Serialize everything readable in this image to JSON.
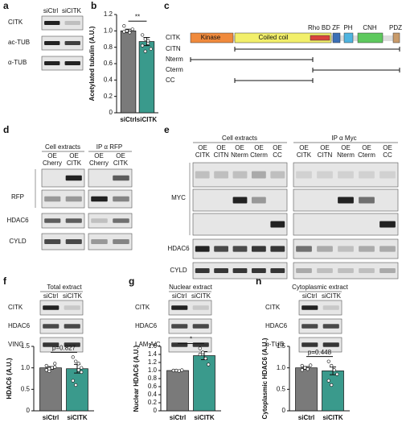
{
  "panel_labels": [
    "a",
    "b",
    "c",
    "d",
    "e",
    "f",
    "g",
    "h"
  ],
  "panel_a": {
    "columns": [
      "siCtrl",
      "siCITK"
    ],
    "rows": [
      "CITK",
      "ac-TUB",
      "α-TUB"
    ]
  },
  "panel_c": {
    "domains": [
      "Kinase",
      "Coiled coil",
      "Rho BD",
      "ZF",
      "PH",
      "CNH",
      "PDZ"
    ],
    "constructs": [
      "CITK",
      "CITN",
      "Nterm",
      "Cterm",
      "CC"
    ]
  },
  "panel_d": {
    "groups": [
      "Cell extracts",
      "IP α RFP"
    ],
    "columns": [
      [
        "OE",
        "Cherry"
      ],
      [
        "OE",
        "CITK"
      ]
    ],
    "rows": [
      "RFP",
      "HDAC6",
      "CYLD"
    ]
  },
  "panel_e": {
    "groups": [
      "Cell extracts",
      "IP α Myc"
    ],
    "columns": [
      [
        "OE",
        "CITK"
      ],
      [
        "OE",
        "CITN"
      ],
      [
        "OE",
        "Nterm"
      ],
      [
        "OE",
        "Cterm"
      ],
      [
        "OE",
        "CC"
      ]
    ],
    "rows": [
      "MYC",
      "HDAC6",
      "CYLD"
    ]
  },
  "panel_f": {
    "title": "Total extract",
    "columns": [
      "siCtrl",
      "siCITK"
    ],
    "rows": [
      "CITK",
      "HDAC6",
      "VINC"
    ]
  },
  "panel_g": {
    "title": "Nuclear extract",
    "columns": [
      "siCtrl",
      "siCITK"
    ],
    "rows": [
      "CITK",
      "HDAC6",
      "LAM A/C"
    ]
  },
  "panel_h": {
    "title": "Cytoplasmic extract",
    "columns": [
      "siCtrl",
      "siCITK"
    ],
    "rows": [
      "CITK",
      "HDAC6",
      "α-TUB"
    ]
  },
  "chart_data": [
    {
      "type": "bar",
      "ylabel": "Acetylated tubulin (A.U.)",
      "categories": [
        "siCtrl",
        "siCITK"
      ],
      "values": [
        1.0,
        0.87
      ],
      "errors": [
        0.02,
        0.05
      ],
      "colors": [
        "#7a7a7a",
        "#3a9a8c"
      ],
      "points": [
        [
          1.06,
          1.0,
          0.98,
          1.02,
          0.99,
          1.0
        ],
        [
          0.95,
          0.9,
          0.85,
          0.78,
          0.82,
          0.75,
          0.88
        ]
      ],
      "ylim": [
        0,
        1.2
      ],
      "yticks": [
        0,
        0.2,
        0.4,
        0.6,
        0.8,
        {
          "value": 1,
          "label": "1.0"
        },
        1.2
      ],
      "annotation": "**"
    },
    {
      "type": "bar",
      "ylabel": "HDAC6 (A.U.)",
      "categories": [
        "siCtrl",
        "siCITK"
      ],
      "values": [
        1.0,
        0.98
      ],
      "errors": [
        0.03,
        0.1
      ],
      "colors": [
        "#7a7a7a",
        "#3a9a8c"
      ],
      "points": [
        [
          1.05,
          0.98,
          1.0,
          1.1,
          0.95,
          0.92,
          1.0,
          1.02
        ],
        [
          1.25,
          1.15,
          0.95,
          0.9,
          0.7,
          0.6,
          1.1,
          1.0
        ]
      ],
      "ylim": [
        0,
        1.5
      ],
      "yticks": [
        0,
        0.5,
        {
          "value": 1,
          "label": "1.0"
        },
        1.5
      ],
      "annotation": "p=0.827"
    },
    {
      "type": "bar",
      "ylabel": "Nuclear HDAC6 (A.U.)",
      "categories": [
        "siCtrl",
        "siCITK"
      ],
      "values": [
        1.0,
        1.37
      ],
      "errors": [
        0.01,
        0.1
      ],
      "colors": [
        "#7a7a7a",
        "#3a9a8c"
      ],
      "points": [
        [
          1.0,
          1.0,
          0.99,
          1.01,
          1.0,
          1.0
        ],
        [
          1.55,
          1.45,
          1.3,
          1.15,
          1.4
        ]
      ],
      "ylim": [
        0,
        1.6
      ],
      "yticks": [
        0,
        0.2,
        0.4,
        0.6,
        0.8,
        {
          "value": 1,
          "label": "1.0"
        },
        1.2,
        1.4,
        1.6
      ],
      "annotation": "*"
    },
    {
      "type": "bar",
      "ylabel": "Cytoplasmic HDAC6 (A.U.)",
      "categories": [
        "siCtrl",
        "siCITK"
      ],
      "values": [
        1.0,
        0.93
      ],
      "errors": [
        0.03,
        0.09
      ],
      "colors": [
        "#7a7a7a",
        "#3a9a8c"
      ],
      "points": [
        [
          1.05,
          1.0,
          0.97,
          1.06,
          0.95,
          1.0
        ],
        [
          1.15,
          1.05,
          0.95,
          0.85,
          0.7,
          0.6
        ]
      ],
      "ylim": [
        0,
        1.5
      ],
      "yticks": [
        0,
        0.5,
        {
          "value": 1,
          "label": "1.0"
        },
        1.5
      ],
      "annotation": "p=0.448"
    }
  ]
}
